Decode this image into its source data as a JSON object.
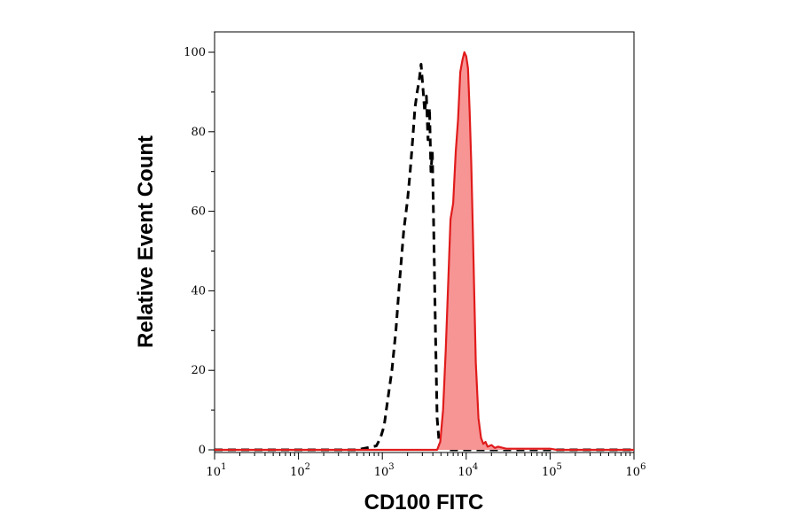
{
  "chart_data": {
    "type": "area",
    "xlabel": "CD100 FITC",
    "ylabel": "Relative Event Count",
    "xscale": "log",
    "xlim": [
      10,
      1000000
    ],
    "ylim": [
      0,
      100
    ],
    "grid": false,
    "x_ticks": [
      {
        "value": 10,
        "base": "10",
        "exp": "1"
      },
      {
        "value": 100,
        "base": "10",
        "exp": "2"
      },
      {
        "value": 1000,
        "base": "10",
        "exp": "3"
      },
      {
        "value": 10000,
        "base": "10",
        "exp": "4"
      },
      {
        "value": 100000,
        "base": "10",
        "exp": "5"
      },
      {
        "value": 1000000,
        "base": "10",
        "exp": "6"
      }
    ],
    "y_ticks": [
      {
        "value": 0,
        "label": "0"
      },
      {
        "value": 20,
        "label": "20"
      },
      {
        "value": 40,
        "label": "40"
      },
      {
        "value": 60,
        "label": "60"
      },
      {
        "value": 80,
        "label": "80"
      },
      {
        "value": 100,
        "label": "100"
      }
    ],
    "series": [
      {
        "style": "dashed",
        "color": "#000000",
        "fill": false,
        "x": [
          10,
          500,
          850,
          950,
          1050,
          1150,
          1300,
          1450,
          1600,
          1800,
          2000,
          2150,
          2300,
          2450,
          2600,
          2750,
          2900,
          3050,
          3200,
          3350,
          3500,
          3650,
          3800,
          3950,
          4100,
          4300,
          4500,
          4800,
          6000,
          1000000
        ],
        "y": [
          0,
          0,
          1,
          3,
          6,
          12,
          20,
          30,
          42,
          55,
          63,
          70,
          78,
          86,
          90,
          93,
          97,
          91,
          85,
          89,
          78,
          86,
          70,
          75,
          55,
          30,
          8,
          1,
          0,
          0
        ]
      },
      {
        "style": "solid",
        "color": "#e11b1b",
        "fill": true,
        "fill_color": "#f79595",
        "x": [
          10,
          4500,
          4900,
          5300,
          5700,
          6100,
          6500,
          7000,
          7500,
          8000,
          8500,
          9000,
          9500,
          10000,
          10500,
          11000,
          11500,
          12000,
          12500,
          13000,
          14000,
          15000,
          16000,
          17000,
          18000,
          20000,
          22000,
          24000,
          30000,
          100000,
          120000,
          1000000
        ],
        "y": [
          0,
          0,
          2,
          10,
          25,
          42,
          58,
          62,
          75,
          83,
          95,
          98,
          100,
          99,
          96,
          85,
          72,
          55,
          38,
          22,
          8,
          3,
          1.5,
          2,
          0.8,
          1.2,
          0.5,
          0.8,
          0.3,
          0.3,
          0,
          0
        ]
      }
    ]
  }
}
